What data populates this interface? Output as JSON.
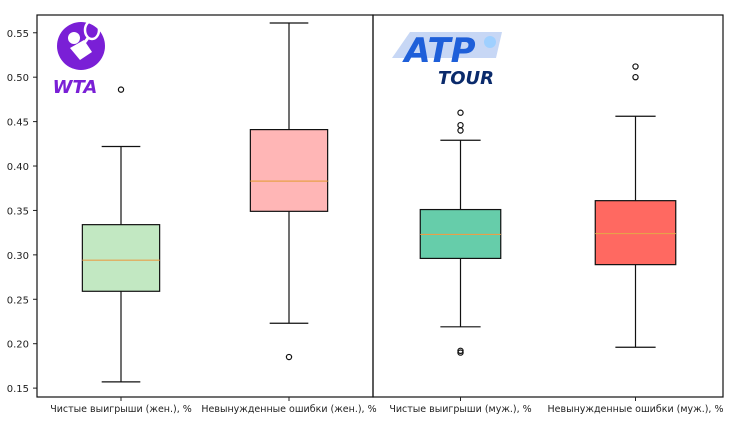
{
  "chart_data": {
    "type": "box",
    "ylim": [
      0.14,
      0.57
    ],
    "yticks": [
      "0.15",
      "0.20",
      "0.25",
      "0.30",
      "0.35",
      "0.40",
      "0.45",
      "0.50",
      "0.55"
    ],
    "yticks_values": [
      0.15,
      0.2,
      0.25,
      0.3,
      0.35,
      0.4,
      0.45,
      0.5,
      0.55
    ],
    "grid": false,
    "panels": [
      {
        "logo": "wta-logo",
        "logo_text": "WTA",
        "boxes": [
          {
            "label": "Чистые выигрыши (жен.), %",
            "color": "#c2e8c2",
            "whisker_low": 0.157,
            "q1": 0.259,
            "median": 0.294,
            "q3": 0.334,
            "whisker_high": 0.422,
            "outliers": [
              0.486
            ]
          },
          {
            "label": "Невынужденные ошибки (жен.), %",
            "color": "#ffb6b6",
            "whisker_low": 0.223,
            "q1": 0.349,
            "median": 0.383,
            "q3": 0.441,
            "whisker_high": 0.561,
            "outliers": [
              0.185
            ]
          }
        ]
      },
      {
        "logo": "atp-tour-logo",
        "logo_text": "ATP",
        "logo_subtext": "TOUR",
        "boxes": [
          {
            "label": "Чистые выигрыши (муж.), %",
            "color": "#66cdaa",
            "whisker_low": 0.219,
            "q1": 0.296,
            "median": 0.323,
            "q3": 0.351,
            "whisker_high": 0.429,
            "outliers": [
              0.19,
              0.192,
              0.44,
              0.446,
              0.46
            ]
          },
          {
            "label": "Невынужденные ошибки (муж.), %",
            "color": "#ff6961",
            "whisker_low": 0.196,
            "q1": 0.289,
            "median": 0.324,
            "q3": 0.361,
            "whisker_high": 0.456,
            "outliers": [
              0.5,
              0.512
            ]
          }
        ]
      }
    ]
  }
}
